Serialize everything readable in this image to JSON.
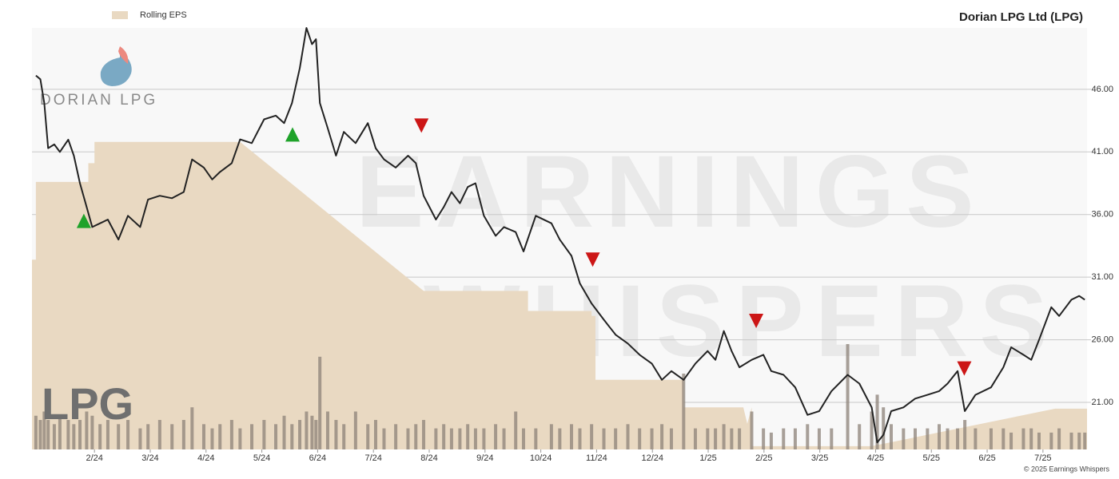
{
  "chart_data": {
    "type": "line",
    "title": "Dorian LPG Ltd (LPG)",
    "footer": "© 2025 Earnings Whispers",
    "watermark": [
      "EARNINGS",
      "WHISPERS"
    ],
    "logo_text": "DORIAN LPG",
    "ticker_badge": "LPG",
    "legend": "top-left",
    "grid": true,
    "xlim": [
      -0.12,
      18.79
    ],
    "xticks": [
      {
        "value": 1,
        "label": "2/24"
      },
      {
        "value": 2,
        "label": "3/24"
      },
      {
        "value": 3,
        "label": "4/24"
      },
      {
        "value": 4,
        "label": "5/24"
      },
      {
        "value": 5,
        "label": "6/24"
      },
      {
        "value": 6,
        "label": "7/24"
      },
      {
        "value": 7,
        "label": "8/24"
      },
      {
        "value": 8,
        "label": "9/24"
      },
      {
        "value": 9,
        "label": "10/24"
      },
      {
        "value": 10,
        "label": "11/24"
      },
      {
        "value": 11,
        "label": "12/24"
      },
      {
        "value": 12,
        "label": "1/25"
      },
      {
        "value": 13,
        "label": "2/25"
      },
      {
        "value": 14,
        "label": "3/25"
      },
      {
        "value": 15,
        "label": "4/25"
      },
      {
        "value": 16,
        "label": "5/25"
      },
      {
        "value": 17,
        "label": "6/25"
      },
      {
        "value": 18,
        "label": "7/25"
      }
    ],
    "ylim": [
      17.24,
      50.9
    ],
    "yticks": [
      {
        "value": 21,
        "label": "21.00"
      },
      {
        "value": 26,
        "label": "26.00"
      },
      {
        "value": 31,
        "label": "31.00"
      },
      {
        "value": 36,
        "label": "36.00"
      },
      {
        "value": 41,
        "label": "41.00"
      },
      {
        "value": 46,
        "label": "46.00"
      }
    ],
    "y2lim": [
      0,
      100
    ],
    "series": [
      {
        "name": "Rolling EPS",
        "kind": "area",
        "color": "#e9d9c2",
        "x": [
          -0.12,
          -0.05,
          -0.05,
          0.89,
          0.89,
          1.0,
          1.0,
          3.61,
          6.9,
          8.77,
          8.77,
          9.91,
          9.91,
          9.98,
          9.98,
          11.56,
          11.56,
          12.63,
          12.7,
          12.78,
          12.78,
          14.93,
          18.22,
          18.79
        ],
        "values": [
          32.4,
          32.4,
          38.6,
          38.6,
          40.1,
          40.1,
          41.8,
          41.8,
          29.9,
          29.9,
          28.3,
          28.3,
          27.9,
          27.9,
          22.8,
          22.8,
          20.6,
          20.6,
          19.3,
          20.6,
          17.5,
          17.5,
          20.5,
          20.5
        ]
      },
      {
        "name": "Price",
        "kind": "line",
        "color": "#222222",
        "x": [
          -0.05,
          0.03,
          0.1,
          0.17,
          0.28,
          0.38,
          0.53,
          0.63,
          0.74,
          0.86,
          0.96,
          1.1,
          1.24,
          1.43,
          1.6,
          1.82,
          1.96,
          2.17,
          2.39,
          2.6,
          2.75,
          2.96,
          3.11,
          3.25,
          3.46,
          3.61,
          3.82,
          4.04,
          4.25,
          4.4,
          4.54,
          4.68,
          4.8,
          4.9,
          4.97,
          5.04,
          5.18,
          5.33,
          5.47,
          5.68,
          5.9,
          6.04,
          6.19,
          6.4,
          6.62,
          6.76,
          6.9,
          7.12,
          7.26,
          7.4,
          7.55,
          7.69,
          7.83,
          7.98,
          8.19,
          8.34,
          8.55,
          8.69,
          8.91,
          9.19,
          9.34,
          9.55,
          9.7,
          9.91,
          10.13,
          10.34,
          10.56,
          10.77,
          10.99,
          11.17,
          11.34,
          11.56,
          11.77,
          11.99,
          12.13,
          12.28,
          12.42,
          12.56,
          12.78,
          12.99,
          13.13,
          13.35,
          13.56,
          13.78,
          13.99,
          14.21,
          14.5,
          14.71,
          14.93,
          15.03,
          15.14,
          15.28,
          15.5,
          15.71,
          15.93,
          16.14,
          16.29,
          16.47,
          16.6,
          16.79,
          17.07,
          17.29,
          17.43,
          17.65,
          17.79,
          17.93,
          18.15,
          18.29,
          18.51,
          18.65,
          18.75
        ],
        "values": [
          47.1,
          46.8,
          44.9,
          41.3,
          41.6,
          41.0,
          41.98,
          40.7,
          38.5,
          36.6,
          35.0,
          35.3,
          35.6,
          34.0,
          35.9,
          35.0,
          37.2,
          37.5,
          37.3,
          37.8,
          40.4,
          39.75,
          38.8,
          39.4,
          40.1,
          42.0,
          41.7,
          43.6,
          43.9,
          43.3,
          44.9,
          47.7,
          50.9,
          49.6,
          50.0,
          44.9,
          42.9,
          40.7,
          42.6,
          41.7,
          43.3,
          41.3,
          40.4,
          39.75,
          40.7,
          40.1,
          37.5,
          35.6,
          36.6,
          37.8,
          36.9,
          38.2,
          38.5,
          35.9,
          34.3,
          35.0,
          34.6,
          33.05,
          35.9,
          35.3,
          34.0,
          32.7,
          30.5,
          28.9,
          27.6,
          26.4,
          25.7,
          24.8,
          24.1,
          22.8,
          23.5,
          22.8,
          24.1,
          25.1,
          24.4,
          26.7,
          25.1,
          23.8,
          24.4,
          24.8,
          23.5,
          23.2,
          22.2,
          20.0,
          20.3,
          21.9,
          23.2,
          22.5,
          20.6,
          17.8,
          18.4,
          20.3,
          20.6,
          21.3,
          21.6,
          21.9,
          22.5,
          23.5,
          20.3,
          21.6,
          22.2,
          23.8,
          25.4,
          24.8,
          24.4,
          26.0,
          28.6,
          27.9,
          29.2,
          29.5,
          29.2
        ]
      },
      {
        "name": "Volume",
        "kind": "bar",
        "axis": "y2",
        "color": "#8c8178",
        "x": [
          -0.05,
          0.03,
          0.1,
          0.17,
          0.28,
          0.38,
          0.53,
          0.63,
          0.74,
          0.86,
          0.96,
          1.1,
          1.24,
          1.43,
          1.6,
          1.82,
          1.96,
          2.17,
          2.39,
          2.6,
          2.75,
          2.96,
          3.11,
          3.25,
          3.46,
          3.61,
          3.82,
          4.04,
          4.25,
          4.4,
          4.54,
          4.68,
          4.8,
          4.9,
          4.97,
          5.04,
          5.18,
          5.33,
          5.47,
          5.68,
          5.9,
          6.04,
          6.19,
          6.4,
          6.62,
          6.76,
          6.9,
          7.12,
          7.26,
          7.4,
          7.55,
          7.69,
          7.83,
          7.98,
          8.19,
          8.34,
          8.55,
          8.69,
          8.91,
          9.19,
          9.34,
          9.55,
          9.7,
          9.91,
          10.13,
          10.34,
          10.56,
          10.77,
          10.99,
          11.17,
          11.34,
          11.56,
          11.77,
          11.99,
          12.13,
          12.28,
          12.42,
          12.56,
          12.78,
          12.99,
          13.13,
          13.35,
          13.56,
          13.78,
          13.99,
          14.21,
          14.5,
          14.71,
          14.93,
          15.03,
          15.14,
          15.28,
          15.5,
          15.71,
          15.93,
          16.14,
          16.29,
          16.47,
          16.6,
          16.79,
          17.07,
          17.29,
          17.43,
          17.65,
          17.79,
          17.93,
          18.15,
          18.29,
          18.51,
          18.65,
          18.75
        ],
        "values": [
          8,
          7,
          9,
          7,
          6,
          8,
          7,
          6,
          7,
          9,
          8,
          6,
          7,
          6,
          7,
          5,
          6,
          7,
          6,
          7,
          10,
          6,
          5,
          6,
          7,
          5,
          6,
          7,
          6,
          8,
          6,
          7,
          9,
          8,
          7,
          22,
          9,
          7,
          6,
          9,
          6,
          7,
          5,
          6,
          5,
          6,
          7,
          5,
          6,
          5,
          5,
          6,
          5,
          5,
          6,
          5,
          9,
          5,
          5,
          6,
          5,
          6,
          5,
          6,
          5,
          5,
          6,
          5,
          5,
          6,
          5,
          18,
          5,
          5,
          5,
          6,
          5,
          5,
          9,
          5,
          4,
          5,
          5,
          6,
          5,
          5,
          25,
          6,
          9,
          13,
          10,
          6,
          5,
          5,
          5,
          6,
          5,
          5,
          7,
          5,
          5,
          5,
          4,
          5,
          5,
          4,
          4,
          5,
          4,
          4,
          4
        ]
      }
    ],
    "markers": [
      {
        "x": 0.81,
        "y": 35.5,
        "direction": "up",
        "color": "#1fa22a"
      },
      {
        "x": 4.55,
        "y": 42.4,
        "direction": "up",
        "color": "#1fa22a"
      },
      {
        "x": 6.86,
        "y": 43.1,
        "direction": "down",
        "color": "#cc1616"
      },
      {
        "x": 9.93,
        "y": 32.4,
        "direction": "down",
        "color": "#cc1616"
      },
      {
        "x": 12.86,
        "y": 27.5,
        "direction": "down",
        "color": "#cc1616"
      },
      {
        "x": 16.59,
        "y": 23.7,
        "direction": "down",
        "color": "#cc1616"
      }
    ]
  }
}
